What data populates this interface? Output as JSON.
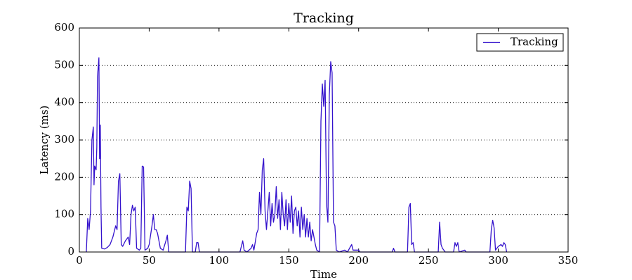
{
  "chart_data": {
    "type": "line",
    "title": "Tracking",
    "x_label": "Time",
    "y_label": "Latency (ms)",
    "xlim": [
      0,
      350
    ],
    "ylim": [
      0,
      600
    ],
    "xticks": [
      0,
      50,
      100,
      150,
      200,
      250,
      300,
      350
    ],
    "yticks": [
      0,
      100,
      200,
      300,
      400,
      500,
      600
    ],
    "grid": "y",
    "legend": "upper right",
    "series": [
      {
        "name": "Tracking",
        "color": "#3311cc",
        "x": [
          5,
          6,
          7,
          8,
          9,
          10,
          10.5,
          11,
          12,
          12.5,
          13,
          14,
          14.5,
          15,
          15.5,
          16,
          18,
          20,
          22,
          24,
          26,
          27,
          28,
          29,
          30,
          31,
          33,
          35,
          36,
          37,
          38,
          39,
          40,
          41,
          43,
          44,
          45,
          46,
          47,
          49,
          50,
          52,
          53,
          54,
          55,
          56,
          58,
          60,
          62,
          63,
          64,
          76,
          77,
          78,
          79,
          80,
          81,
          83,
          84,
          85,
          86,
          115,
          116,
          117,
          118,
          120,
          123,
          124,
          125,
          127,
          128,
          129,
          130,
          131,
          132,
          133,
          134,
          135,
          136,
          137,
          138,
          139,
          140,
          141,
          142,
          143,
          144,
          145,
          146,
          147,
          148,
          149,
          150,
          151,
          152,
          153,
          154,
          155,
          156,
          157,
          158,
          159,
          160,
          161,
          162,
          163,
          164,
          165,
          166,
          167,
          168,
          169,
          170,
          172,
          173,
          174,
          175,
          176,
          177,
          178,
          179,
          180,
          181,
          182,
          183,
          184,
          186,
          190,
          192,
          195,
          196,
          200,
          201,
          224,
          225,
          226,
          235,
          236,
          237,
          238,
          239,
          240,
          257,
          258,
          259,
          260,
          262,
          268,
          269,
          270,
          271,
          272,
          276,
          277,
          294,
          295,
          296,
          297,
          298,
          300,
          302,
          303,
          304,
          305,
          306
        ],
        "values": [
          0,
          90,
          60,
          110,
          300,
          335,
          180,
          230,
          220,
          280,
          470,
          520,
          250,
          340,
          120,
          10,
          8,
          12,
          20,
          40,
          70,
          60,
          190,
          210,
          20,
          15,
          30,
          40,
          20,
          100,
          125,
          110,
          120,
          10,
          5,
          10,
          230,
          228,
          5,
          10,
          20,
          70,
          100,
          60,
          60,
          50,
          10,
          5,
          30,
          45,
          0,
          0,
          120,
          110,
          190,
          170,
          0,
          0,
          25,
          25,
          0,
          0,
          15,
          30,
          5,
          0,
          10,
          20,
          5,
          50,
          60,
          160,
          100,
          220,
          250,
          110,
          60,
          110,
          160,
          70,
          130,
          80,
          100,
          175,
          90,
          140,
          60,
          160,
          100,
          70,
          140,
          60,
          130,
          80,
          150,
          50,
          110,
          120,
          70,
          110,
          40,
          120,
          60,
          100,
          40,
          90,
          40,
          80,
          30,
          60,
          40,
          20,
          5,
          0,
          350,
          450,
          390,
          460,
          130,
          80,
          420,
          510,
          480,
          80,
          70,
          5,
          0,
          5,
          0,
          20,
          5,
          5,
          0,
          0,
          10,
          0,
          0,
          120,
          130,
          20,
          25,
          0,
          0,
          80,
          20,
          10,
          0,
          0,
          25,
          15,
          25,
          0,
          5,
          0,
          0,
          60,
          85,
          65,
          5,
          15,
          20,
          15,
          25,
          20,
          0
        ]
      }
    ]
  }
}
